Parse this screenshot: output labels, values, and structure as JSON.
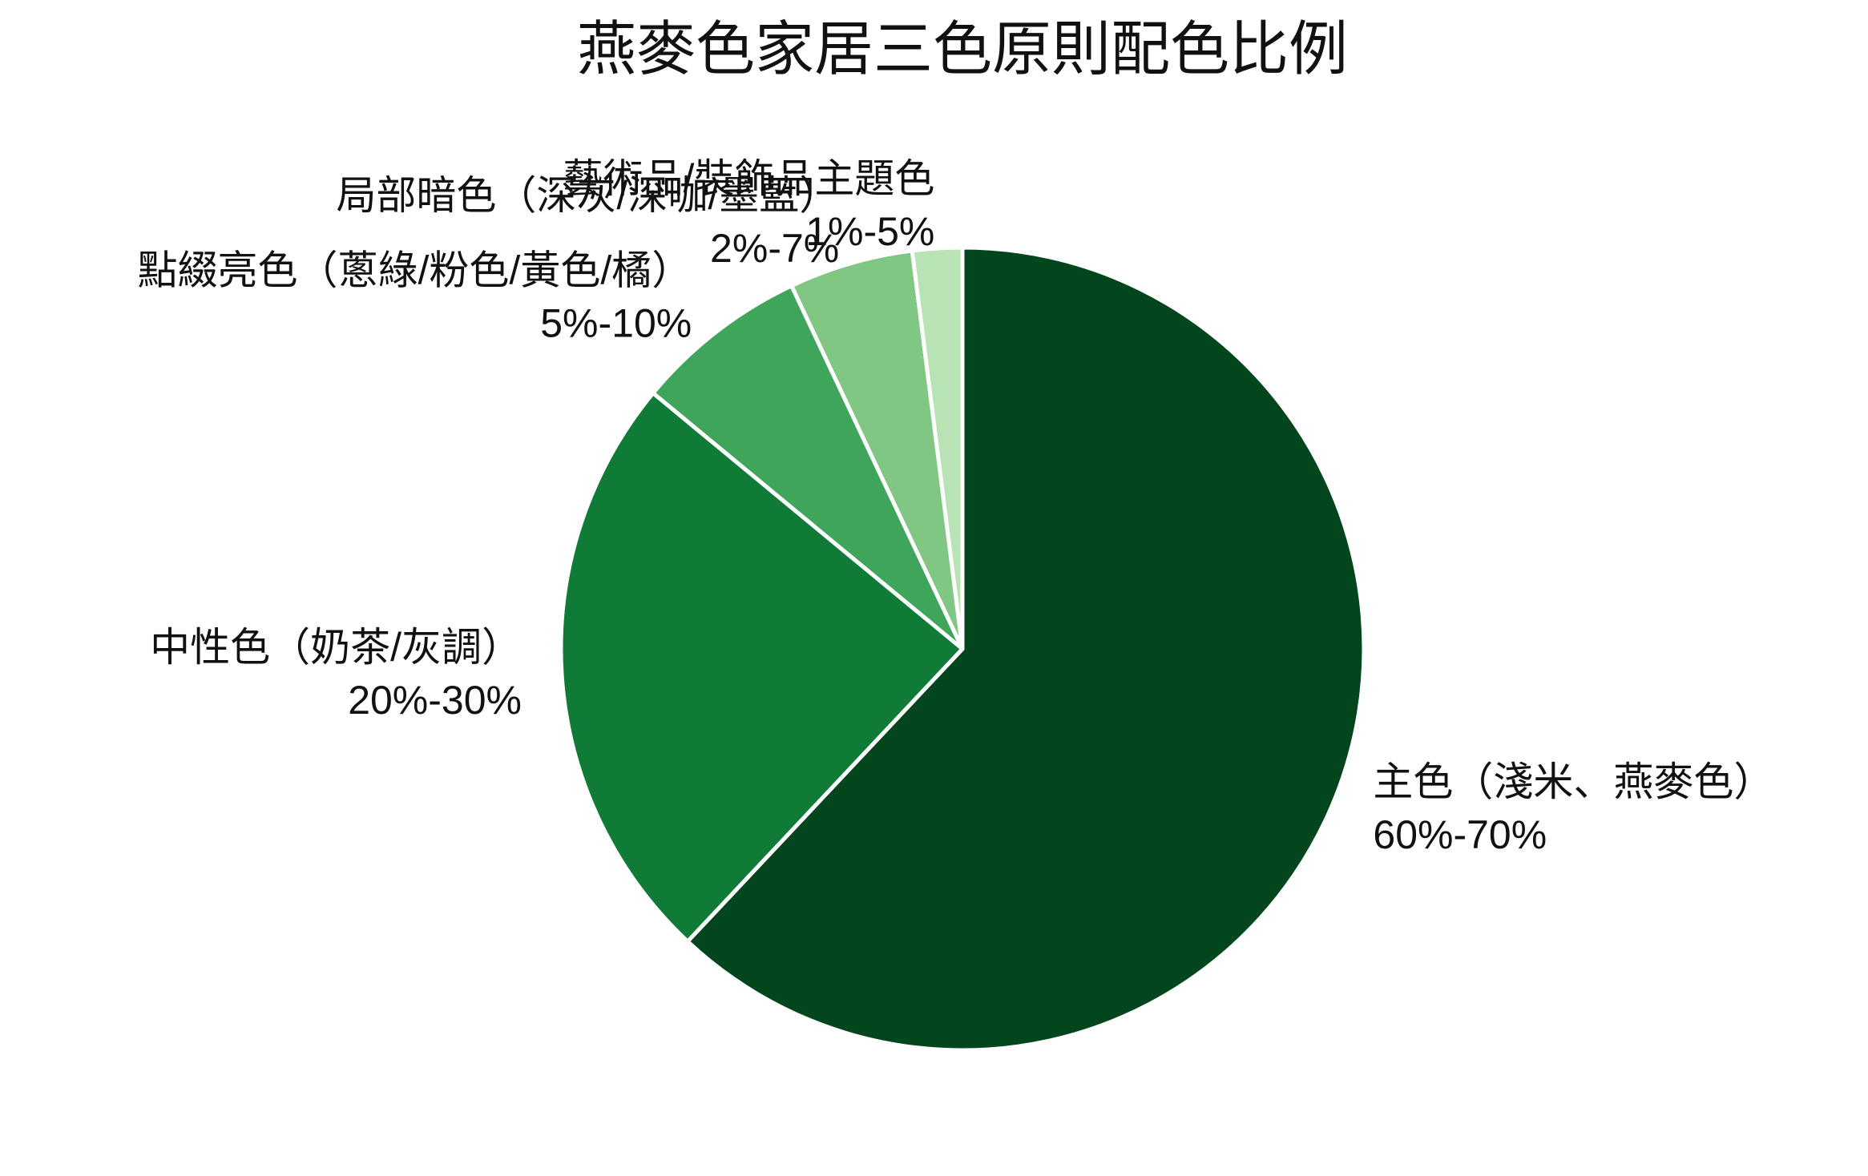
{
  "chart_data": {
    "type": "pie",
    "title": "燕麥色家居三色原則配色比例",
    "categories": [
      "主色（淺米、燕麥色）",
      "中性色（奶茶/灰調）",
      "點綴亮色（蔥綠/粉色/黃色/橘）",
      "局部暗色（深灰/深咖/墨藍）",
      "藝術品/裝飾品主題色"
    ],
    "ranges": [
      "60%-70%",
      "20%-30%",
      "5%-10%",
      "2%-7%",
      "1%-5%"
    ],
    "values": [
      62,
      24,
      7,
      5,
      2
    ],
    "colors": [
      "#03461e",
      "#107a37",
      "#3ea55b",
      "#80c783",
      "#b8e3b4"
    ]
  }
}
